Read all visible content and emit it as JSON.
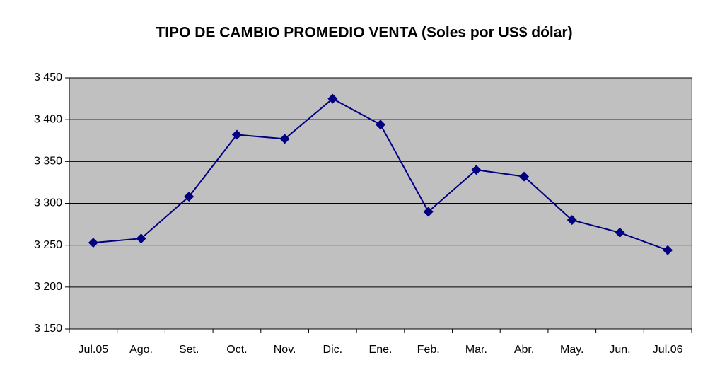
{
  "chart_data": {
    "type": "line",
    "title": "TIPO DE CAMBIO PROMEDIO VENTA (Soles por US$ dólar)",
    "categories": [
      "Jul.05",
      "Ago.",
      "Set.",
      "Oct.",
      "Nov.",
      "Dic.",
      "Ene.",
      "Feb.",
      "Mar.",
      "Abr.",
      "May.",
      "Jun.",
      "Jul.06"
    ],
    "series": [
      {
        "color": "#000080",
        "values": [
          3253,
          3258,
          3308,
          3382,
          3377,
          3425,
          3394,
          3290,
          3340,
          3332,
          3280,
          3265,
          3244
        ]
      }
    ],
    "ylim": [
      3150,
      3450
    ],
    "yticks": [
      {
        "value": 3150,
        "label": "3 150"
      },
      {
        "value": 3200,
        "label": "3 200"
      },
      {
        "value": 3250,
        "label": "3 250"
      },
      {
        "value": 3300,
        "label": "3 300"
      },
      {
        "value": 3350,
        "label": "3 350"
      },
      {
        "value": 3400,
        "label": "3 400"
      },
      {
        "value": 3450,
        "label": "3 450"
      }
    ],
    "grid": true
  }
}
